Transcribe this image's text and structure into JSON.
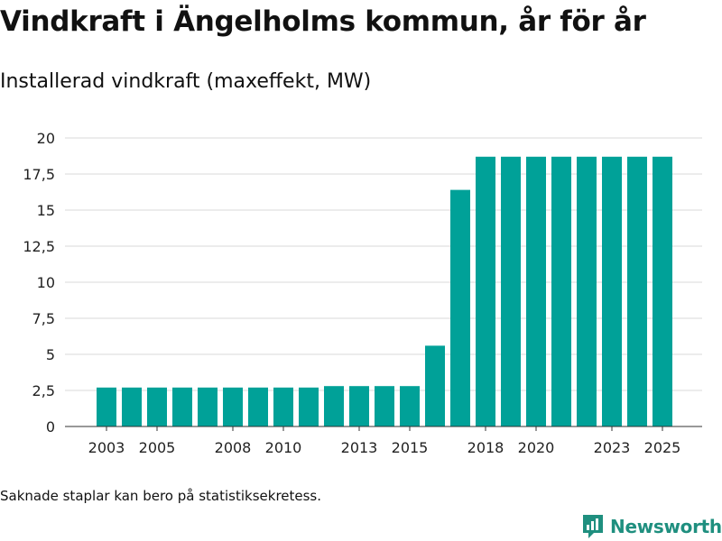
{
  "header": {
    "title": "Vindkraft i Ängelholms kommun, år för år",
    "subtitle": "Installerad vindkraft (maxeffekt, MW)"
  },
  "footnote": "Saknade staplar kan bero på statistiksekretess.",
  "brand": {
    "name": "Newsworthy",
    "icon": "newsworthy-logo-icon",
    "color": "#1f8f7f"
  },
  "chart_data": {
    "type": "bar",
    "title": "Vindkraft i Ängelholms kommun, år för år",
    "ylabel": "Installerad vindkraft (maxeffekt, MW)",
    "xlabel": "",
    "bar_color": "#00a198",
    "grid": true,
    "ylim": [
      0,
      20
    ],
    "yticks": [
      "0",
      "2,5",
      "5",
      "7,5",
      "10",
      "12,5",
      "15",
      "17,5",
      "20"
    ],
    "ytick_values": [
      0,
      2.5,
      5,
      7.5,
      10,
      12.5,
      15,
      17.5,
      20
    ],
    "xticks": [
      "2003",
      "2005",
      "2008",
      "2010",
      "2013",
      "2015",
      "2018",
      "2020",
      "2023",
      "2025"
    ],
    "categories": [
      "2003",
      "2004",
      "2005",
      "2006",
      "2007",
      "2008",
      "2009",
      "2010",
      "2011",
      "2012",
      "2013",
      "2014",
      "2015",
      "2016",
      "2017",
      "2018",
      "2019",
      "2020",
      "2021",
      "2022",
      "2023",
      "2024",
      "2025"
    ],
    "values": [
      2.7,
      2.7,
      2.7,
      2.7,
      2.7,
      2.7,
      2.7,
      2.7,
      2.7,
      2.8,
      2.8,
      2.8,
      2.8,
      5.6,
      16.4,
      18.7,
      18.7,
      18.7,
      18.7,
      18.7,
      18.7,
      18.7,
      18.7
    ]
  }
}
